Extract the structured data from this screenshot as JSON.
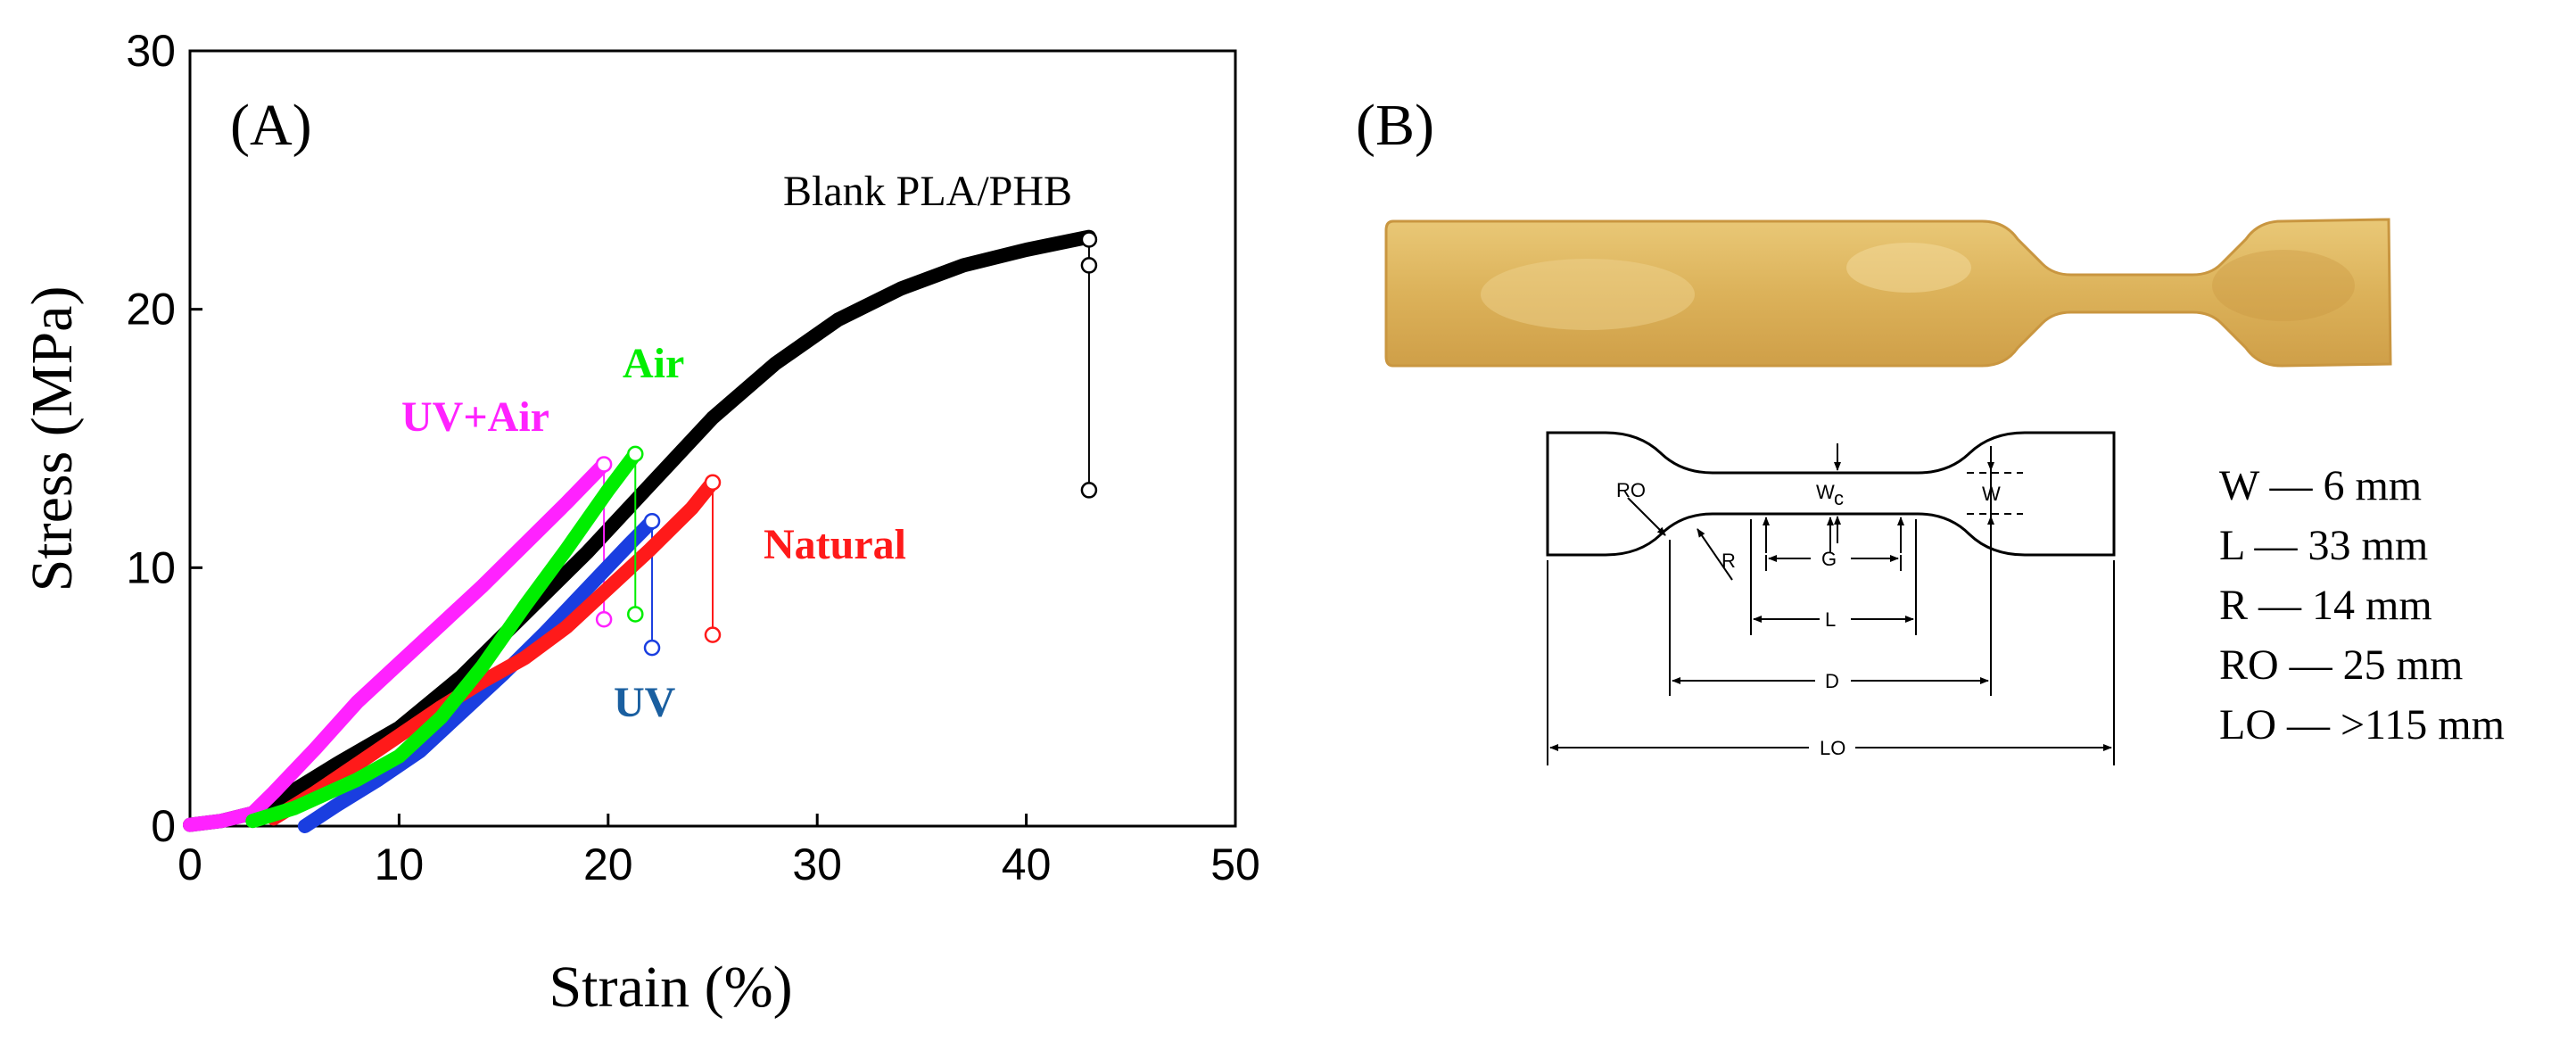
{
  "panel_a_label": "(A)",
  "panel_b_label": "(B)",
  "chart_data": {
    "type": "line",
    "xlabel": "Strain (%)",
    "ylabel": "Stress (MPa)",
    "xlim": [
      0,
      50
    ],
    "ylim": [
      0,
      30
    ],
    "xticks": [
      0,
      10,
      20,
      30,
      40,
      50
    ],
    "yticks": [
      0,
      10,
      20,
      30
    ],
    "grid": false,
    "legend": "inline labels",
    "series": [
      {
        "name": "Blank PLA/PHB",
        "color": "#000000",
        "points": [
          [
            0,
            0.05
          ],
          [
            1.5,
            0.2
          ],
          [
            3,
            0.5
          ],
          [
            4,
            0.9
          ],
          [
            5,
            1.4
          ],
          [
            7,
            2.4
          ],
          [
            10,
            3.8
          ],
          [
            13,
            5.8
          ],
          [
            16,
            8.2
          ],
          [
            19,
            10.6
          ],
          [
            22,
            13.2
          ],
          [
            25,
            15.8
          ],
          [
            28,
            17.9
          ],
          [
            31,
            19.6
          ],
          [
            34,
            20.8
          ],
          [
            37,
            21.7
          ],
          [
            40,
            22.3
          ],
          [
            43,
            22.8
          ]
        ],
        "break_end": [
          43,
          13.0
        ],
        "markers": [
          [
            43,
            22.7
          ],
          [
            43,
            21.7
          ],
          [
            43,
            13.0
          ]
        ]
      },
      {
        "name": "Air",
        "color": "#00ee00",
        "points": [
          [
            3,
            0.2
          ],
          [
            5,
            0.7
          ],
          [
            8,
            1.8
          ],
          [
            10,
            2.7
          ],
          [
            12,
            4.2
          ],
          [
            14,
            6.2
          ],
          [
            16,
            8.5
          ],
          [
            18,
            10.7
          ],
          [
            20,
            13.0
          ],
          [
            21.3,
            14.4
          ]
        ],
        "break_end": [
          21.3,
          8.2
        ],
        "markers": [
          [
            21.3,
            14.4
          ],
          [
            21.3,
            8.2
          ]
        ]
      },
      {
        "name": "UV+Air",
        "color": "#ff22ff",
        "points": [
          [
            0,
            0.05
          ],
          [
            1.5,
            0.2
          ],
          [
            3,
            0.5
          ],
          [
            4,
            1.3
          ],
          [
            6,
            3.0
          ],
          [
            8,
            4.8
          ],
          [
            10,
            6.3
          ],
          [
            12,
            7.8
          ],
          [
            14,
            9.3
          ],
          [
            16,
            10.9
          ],
          [
            18,
            12.5
          ],
          [
            19.8,
            14.0
          ]
        ],
        "break_end": [
          19.8,
          8.0
        ],
        "markers": [
          [
            19.8,
            14.0
          ],
          [
            19.8,
            8.0
          ]
        ]
      },
      {
        "name": "UV",
        "color": "#1a3ee0",
        "points": [
          [
            5.5,
            0.0
          ],
          [
            7,
            0.8
          ],
          [
            9,
            1.8
          ],
          [
            11,
            2.9
          ],
          [
            13,
            4.4
          ],
          [
            15,
            5.9
          ],
          [
            17,
            7.5
          ],
          [
            19,
            9.2
          ],
          [
            21,
            10.9
          ],
          [
            22.1,
            11.8
          ]
        ],
        "break_end": [
          22.1,
          6.9
        ],
        "markers": [
          [
            22.1,
            11.8
          ],
          [
            22.1,
            6.9
          ]
        ]
      },
      {
        "name": "Natural",
        "color": "#ff1a1a",
        "points": [
          [
            4,
            0.3
          ],
          [
            6,
            1.3
          ],
          [
            8,
            2.4
          ],
          [
            10,
            3.5
          ],
          [
            12,
            4.6
          ],
          [
            14,
            5.6
          ],
          [
            16,
            6.5
          ],
          [
            18,
            7.7
          ],
          [
            20,
            9.2
          ],
          [
            22,
            10.7
          ],
          [
            24,
            12.3
          ],
          [
            25,
            13.3
          ]
        ],
        "break_end": [
          25,
          7.4
        ],
        "markers": [
          [
            25,
            13.3
          ],
          [
            25,
            7.4
          ]
        ]
      }
    ],
    "annotations": {
      "blank": "Blank PLA/PHB",
      "air": "Air",
      "uvair": "UV+Air",
      "uv": "UV",
      "natural": "Natural"
    }
  },
  "diagram": {
    "labels": {
      "wc": "W",
      "wc_sub": "c",
      "w": "W",
      "ro": "RO",
      "r": "R",
      "g": "G",
      "l": "L",
      "d": "D",
      "lo": "LO"
    },
    "specs": [
      "W — 6 mm",
      "L — 33 mm",
      "R — 14 mm",
      "RO — 25 mm",
      "LO — >115 mm"
    ]
  }
}
